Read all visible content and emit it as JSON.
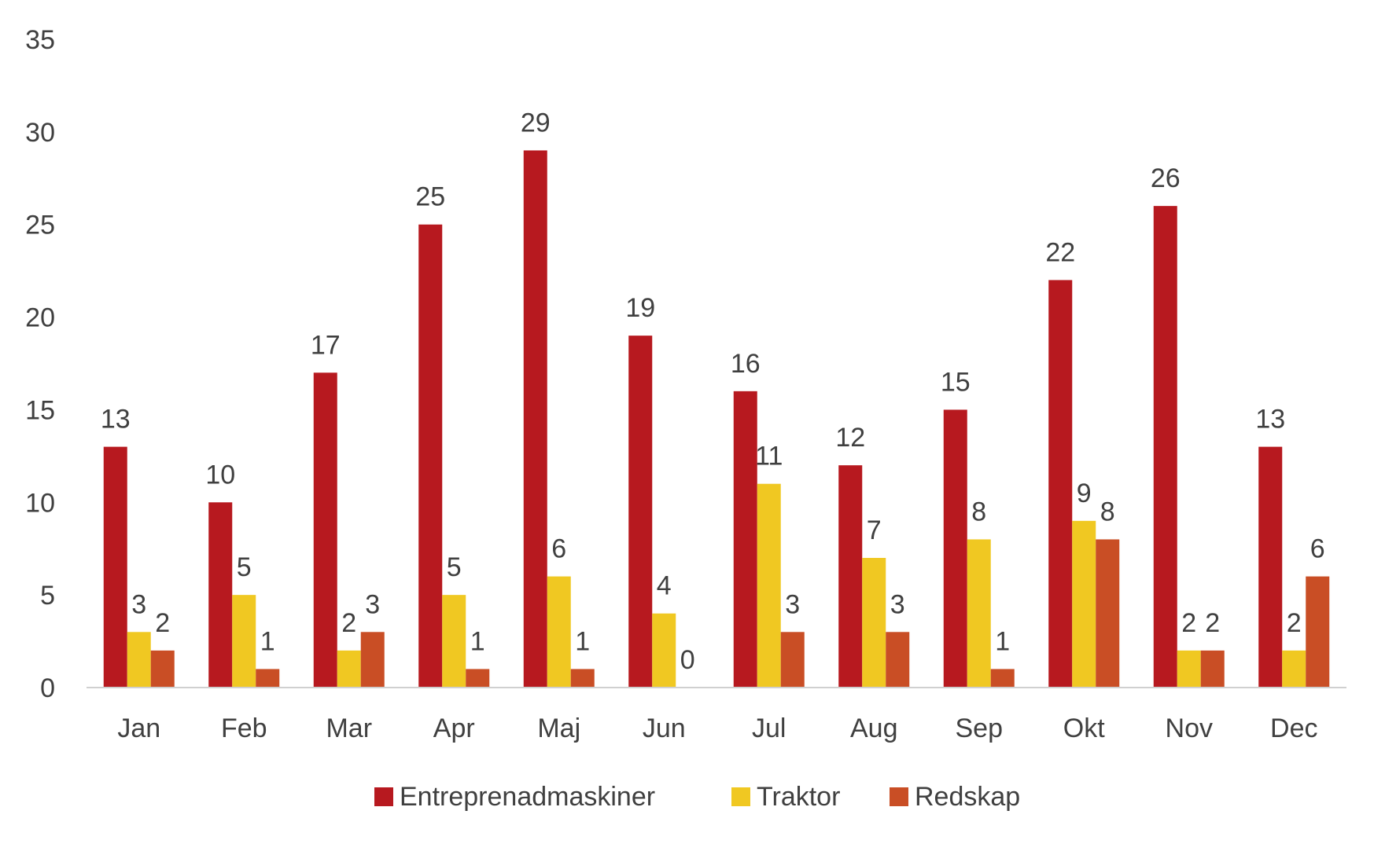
{
  "chart_data": {
    "type": "bar",
    "title": "",
    "xlabel": "",
    "ylabel": "",
    "ylim": [
      0,
      35
    ],
    "yticks": [
      0,
      5,
      10,
      15,
      20,
      25,
      30,
      35
    ],
    "grid": false,
    "legend_position": "bottom",
    "categories": [
      "Jan",
      "Feb",
      "Mar",
      "Apr",
      "Maj",
      "Jun",
      "Jul",
      "Aug",
      "Sep",
      "Okt",
      "Nov",
      "Dec"
    ],
    "series": [
      {
        "name": "Entreprenadmaskiner",
        "color": "#B7191F",
        "values": [
          13,
          10,
          17,
          25,
          29,
          19,
          16,
          12,
          15,
          22,
          26,
          13
        ]
      },
      {
        "name": "Traktor",
        "color": "#F0C822",
        "values": [
          3,
          5,
          2,
          5,
          6,
          4,
          11,
          7,
          8,
          9,
          2,
          2
        ]
      },
      {
        "name": "Redskap",
        "color": "#C94E25",
        "values": [
          2,
          1,
          3,
          1,
          1,
          0,
          3,
          3,
          1,
          8,
          2,
          6
        ]
      }
    ]
  }
}
